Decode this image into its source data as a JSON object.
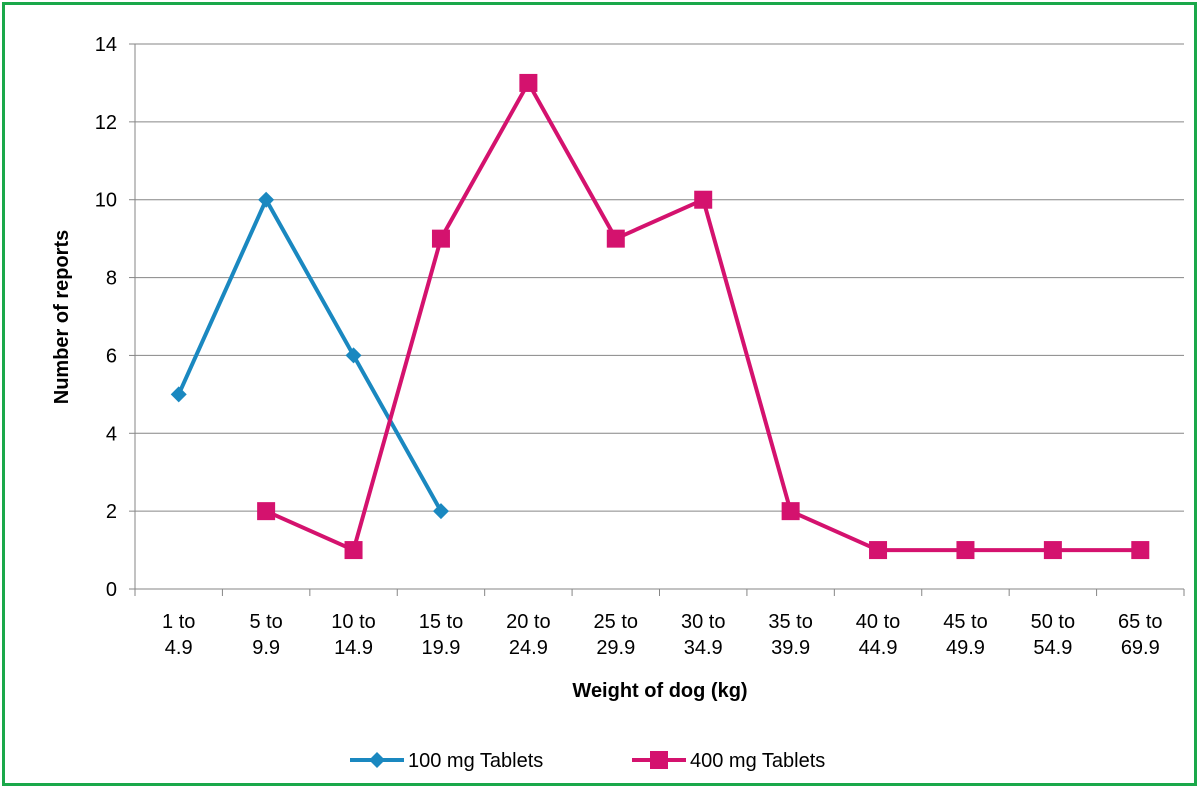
{
  "chart_data": {
    "type": "line",
    "title": "",
    "xlabel": "Weight of dog (kg)",
    "ylabel": "Number of reports",
    "ylim": [
      0,
      14
    ],
    "yticks": [
      0,
      2,
      4,
      6,
      8,
      10,
      12,
      14
    ],
    "categories": [
      [
        "1 to",
        "4.9"
      ],
      [
        "5 to",
        "9.9"
      ],
      [
        "10 to",
        "14.9"
      ],
      [
        "15 to",
        "19.9"
      ],
      [
        "20 to",
        "24.9"
      ],
      [
        "25 to",
        "29.9"
      ],
      [
        "30 to",
        "34.9"
      ],
      [
        "35 to",
        "39.9"
      ],
      [
        "40 to",
        "44.9"
      ],
      [
        "45 to",
        "49.9"
      ],
      [
        "50 to",
        "54.9"
      ],
      [
        "65 to",
        "69.9"
      ]
    ],
    "series": [
      {
        "name": "100 mg Tablets",
        "color": "#1a88c0",
        "marker": "diamond",
        "values": [
          5,
          10,
          6,
          2,
          null,
          null,
          null,
          null,
          null,
          null,
          null,
          null
        ]
      },
      {
        "name": "400 mg Tablets",
        "color": "#d4126e",
        "marker": "square",
        "values": [
          null,
          2,
          1,
          9,
          13,
          9,
          10,
          2,
          1,
          1,
          1,
          1
        ]
      }
    ],
    "grid": "horizontal",
    "legend_position": "bottom"
  }
}
